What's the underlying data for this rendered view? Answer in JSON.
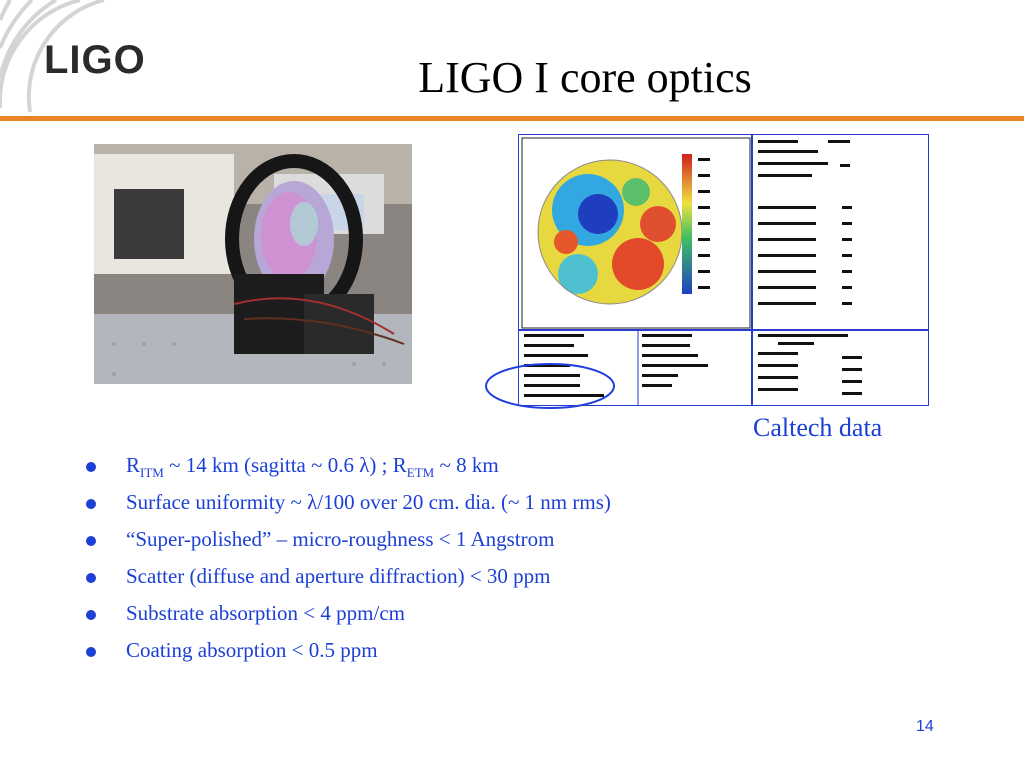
{
  "logo": {
    "text": "LIGO"
  },
  "slide": {
    "title": "LIGO I core optics",
    "page_number": "14"
  },
  "figure": {
    "caption": "Caltech data"
  },
  "bullets": [
    {
      "pre": "R",
      "sub1": "ITM",
      "mid": " ~ 14 km (sagitta ~ 0.6 λ) ; R",
      "sub2": "ETM",
      "post": " ~ 8 km"
    },
    {
      "text": "Surface uniformity ~ λ/100 over 20 cm. dia. (~ 1 nm rms)"
    },
    {
      "text": "“Super-polished”  – micro-roughness < 1 Angstrom"
    },
    {
      "text": "Scatter (diffuse and aperture diffraction) < 30 ppm"
    },
    {
      "text": "Substrate absorption <  4 ppm/cm"
    },
    {
      "text": "Coating absorption < 0.5 ppm"
    }
  ],
  "colors": {
    "accent_rule": "#e8832a",
    "bullet_text": "#1c3fd6"
  }
}
